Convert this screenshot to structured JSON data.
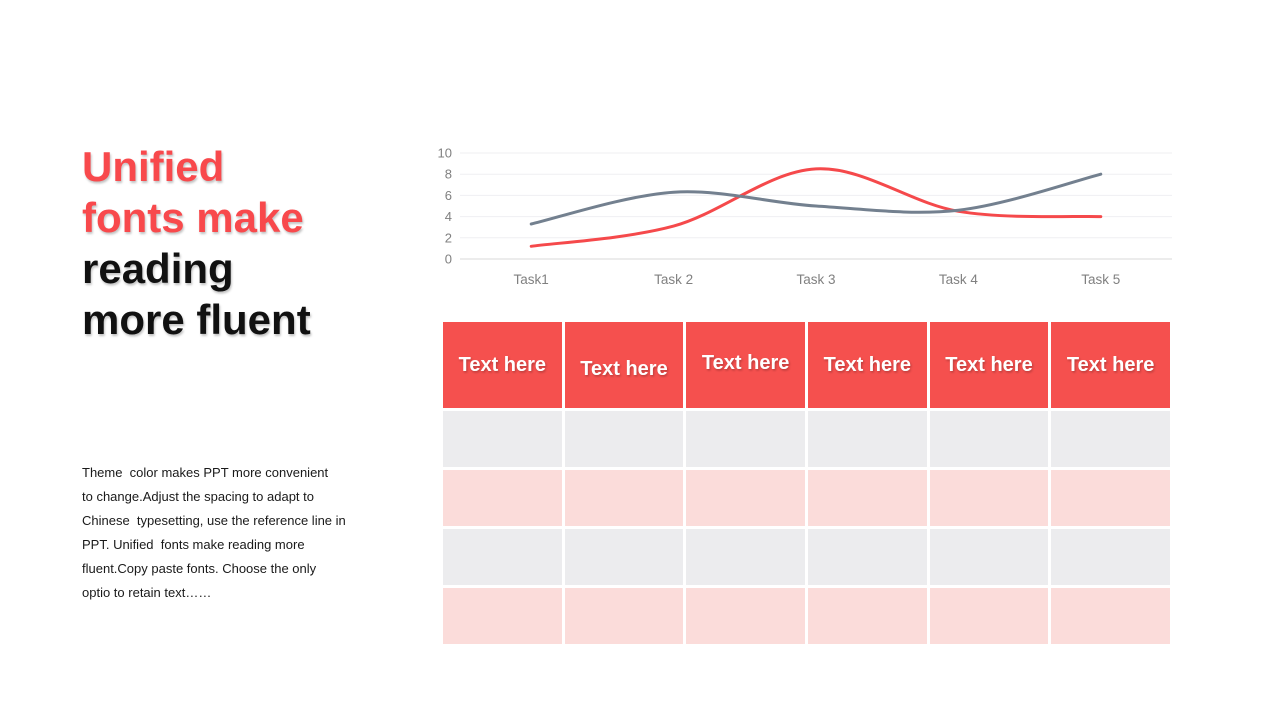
{
  "slide": {
    "title": {
      "accent_lines": [
        "Unified",
        "fonts make"
      ],
      "dark_lines": [
        "reading",
        "more fluent"
      ],
      "accent_color": "#F8494C",
      "dark_color": "#111111"
    },
    "body_text": {
      "lines": [
        "Theme  color makes PPT more convenient",
        "to change.Adjust the spacing to adapt to",
        "Chinese  typesetting, use the reference line in",
        "PPT. Unified  fonts make reading more",
        "fluent.Copy paste fonts. Choose the only",
        "optio to retain text……"
      ],
      "text_color": "#1a1a1a"
    }
  },
  "chart_data": {
    "type": "line",
    "categories": [
      "Task1",
      "Task 2",
      "Task 3",
      "Task 4",
      "Task 5"
    ],
    "series": [
      {
        "name": "red-series",
        "color": "#F5494B",
        "values": [
          1.2,
          3.1,
          8.5,
          4.5,
          4.0
        ]
      },
      {
        "name": "gray-series",
        "color": "#73808F",
        "values": [
          3.3,
          6.3,
          5.0,
          4.6,
          8.0
        ]
      }
    ],
    "title": "",
    "xlabel": "",
    "ylabel": "",
    "ylim": [
      0,
      10
    ],
    "ytick_step": 2,
    "yticks": [
      0,
      2,
      4,
      6,
      8,
      10
    ],
    "grid": true,
    "legend": "none",
    "smooth": true,
    "axis_text_color": "#808080",
    "gridline_color": "#EFEFF2",
    "axis_line_color": "#D9D9D9"
  },
  "table": {
    "header": {
      "labels": [
        "Text here",
        "Text here",
        "Text here",
        "Text here",
        "Text here",
        "Text here"
      ],
      "bg": "#F5504E",
      "text_color": "#FFFFFF"
    },
    "rows": 4,
    "cols": 6,
    "row_colors": [
      "#ECECEE",
      "#FBDCDA",
      "#ECECEE",
      "#FBDCDA"
    ]
  }
}
